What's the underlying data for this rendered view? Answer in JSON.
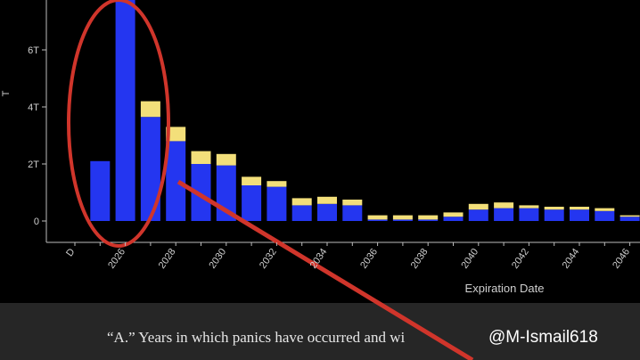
{
  "chart_data": {
    "type": "bar",
    "stacked": true,
    "y_label": "T",
    "x_label": "Expiration Date",
    "categories": [
      "D",
      null,
      "2026",
      null,
      "2028",
      null,
      "2030",
      null,
      "2032",
      null,
      "2034",
      null,
      "2036",
      null,
      "2038",
      null,
      "2040",
      null,
      "2042",
      null,
      "2044",
      null,
      "2046"
    ],
    "series": [
      {
        "color": "#2436f0",
        "values": [
          null,
          2.1,
          8,
          3.65,
          2.8,
          2.0,
          1.95,
          1.25,
          1.2,
          0.55,
          0.6,
          0.55,
          0.05,
          0.05,
          0.05,
          0.15,
          0.4,
          0.45,
          0.45,
          0.4,
          0.4,
          0.35,
          0.15
        ]
      },
      {
        "color": "#f3df7a",
        "values": [
          null,
          0,
          0,
          0.55,
          0.5,
          0.45,
          0.4,
          0.3,
          0.2,
          0.25,
          0.25,
          0.2,
          0.15,
          0.15,
          0.15,
          0.15,
          0.2,
          0.2,
          0.1,
          0.1,
          0.1,
          0.1,
          0.05
        ]
      }
    ],
    "ylim": [
      -0.75,
      7.75
    ],
    "yticks": [
      {
        "value": 0,
        "label": "0"
      },
      {
        "value": 2,
        "label": "2T"
      },
      {
        "value": 4,
        "label": "4T"
      },
      {
        "value": 6,
        "label": "6T"
      }
    ],
    "caption": "“A.” Years in which panics have occurred and wi",
    "watermark": "@M-Ismail618"
  }
}
